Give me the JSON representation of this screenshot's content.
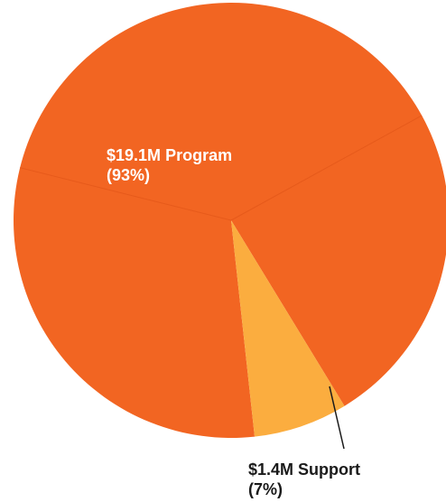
{
  "chart_data": {
    "type": "pie",
    "slices": [
      {
        "amount": "$19.1M",
        "label": "Program",
        "percent_text": "(93%)",
        "value": 93,
        "color": "#f26522"
      },
      {
        "amount": "$1.4M",
        "label": "Support",
        "percent_text": "(7%)",
        "value": 7,
        "color": "#fbad3f"
      }
    ]
  }
}
